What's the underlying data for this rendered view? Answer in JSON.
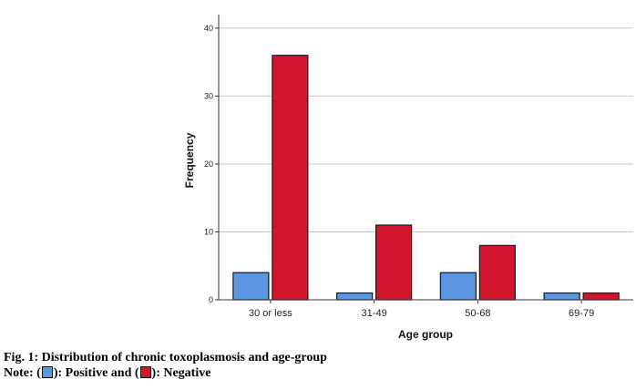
{
  "chart_data": {
    "type": "bar",
    "categories": [
      "30 or less",
      "31-49",
      "50-68",
      "69-79"
    ],
    "series": [
      {
        "name": "Positive",
        "values": [
          4,
          1,
          4,
          1
        ],
        "color": "#5b96e0"
      },
      {
        "name": "Negative",
        "values": [
          36,
          11,
          8,
          1
        ],
        "color": "#d1152d"
      }
    ],
    "xlabel": "Age group",
    "ylabel": "Frequency",
    "ylim": [
      0,
      42
    ],
    "yticks": [
      0,
      10,
      20,
      30,
      40
    ],
    "grid": true
  },
  "caption": {
    "line1": "Fig. 1: Distribution of chronic toxoplasmosis and age-group",
    "note_prefix": "Note: (",
    "positive_text": "): Positive and (",
    "negative_text": "): Negative"
  }
}
